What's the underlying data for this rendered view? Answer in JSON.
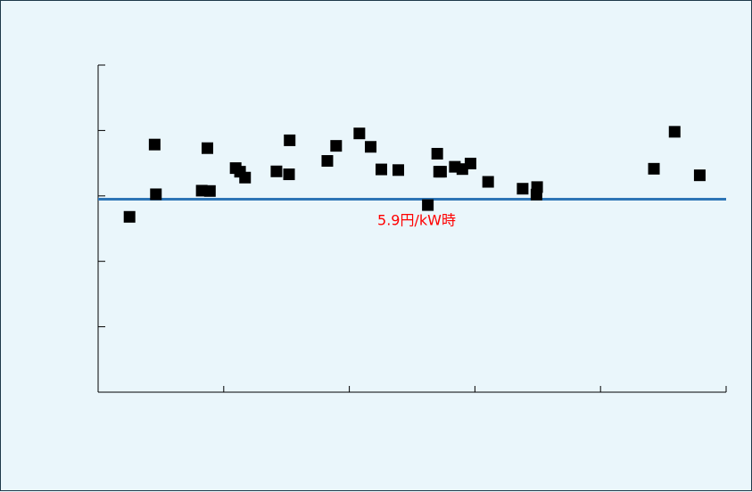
{
  "chart_data": {
    "type": "scatter",
    "title": "",
    "xlabel": "",
    "ylabel": "",
    "xlim": [
      0,
      100
    ],
    "ylim": [
      0,
      10
    ],
    "grid": false,
    "legend": "none",
    "marker_color": "#000000",
    "reference_line": {
      "y": 5.9,
      "label": "5.9円/kW時",
      "color": "#2e75b6",
      "label_color": "#ff0000"
    },
    "series": [
      {
        "points": [
          {
            "x": 5.0,
            "y": 5.36
          },
          {
            "x": 9.0,
            "y": 7.57
          },
          {
            "x": 9.2,
            "y": 6.05
          },
          {
            "x": 16.5,
            "y": 6.16
          },
          {
            "x": 17.4,
            "y": 7.46
          },
          {
            "x": 17.8,
            "y": 6.15
          },
          {
            "x": 21.9,
            "y": 6.85
          },
          {
            "x": 22.6,
            "y": 6.74
          },
          {
            "x": 23.4,
            "y": 6.56
          },
          {
            "x": 28.4,
            "y": 6.75
          },
          {
            "x": 30.4,
            "y": 6.66
          },
          {
            "x": 30.5,
            "y": 7.7
          },
          {
            "x": 36.5,
            "y": 7.07
          },
          {
            "x": 37.9,
            "y": 7.53
          },
          {
            "x": 41.6,
            "y": 7.91
          },
          {
            "x": 43.4,
            "y": 7.5
          },
          {
            "x": 45.1,
            "y": 6.81
          },
          {
            "x": 47.8,
            "y": 6.79
          },
          {
            "x": 52.5,
            "y": 5.72
          },
          {
            "x": 54.0,
            "y": 7.29
          },
          {
            "x": 54.3,
            "y": 6.74
          },
          {
            "x": 54.6,
            "y": 6.74
          },
          {
            "x": 56.8,
            "y": 6.89
          },
          {
            "x": 58.0,
            "y": 6.82
          },
          {
            "x": 59.3,
            "y": 6.99
          },
          {
            "x": 62.1,
            "y": 6.43
          },
          {
            "x": 67.6,
            "y": 6.22
          },
          {
            "x": 69.8,
            "y": 6.04
          },
          {
            "x": 69.9,
            "y": 6.27
          },
          {
            "x": 88.5,
            "y": 6.83
          },
          {
            "x": 91.8,
            "y": 7.96
          },
          {
            "x": 95.8,
            "y": 6.63
          }
        ]
      }
    ]
  }
}
